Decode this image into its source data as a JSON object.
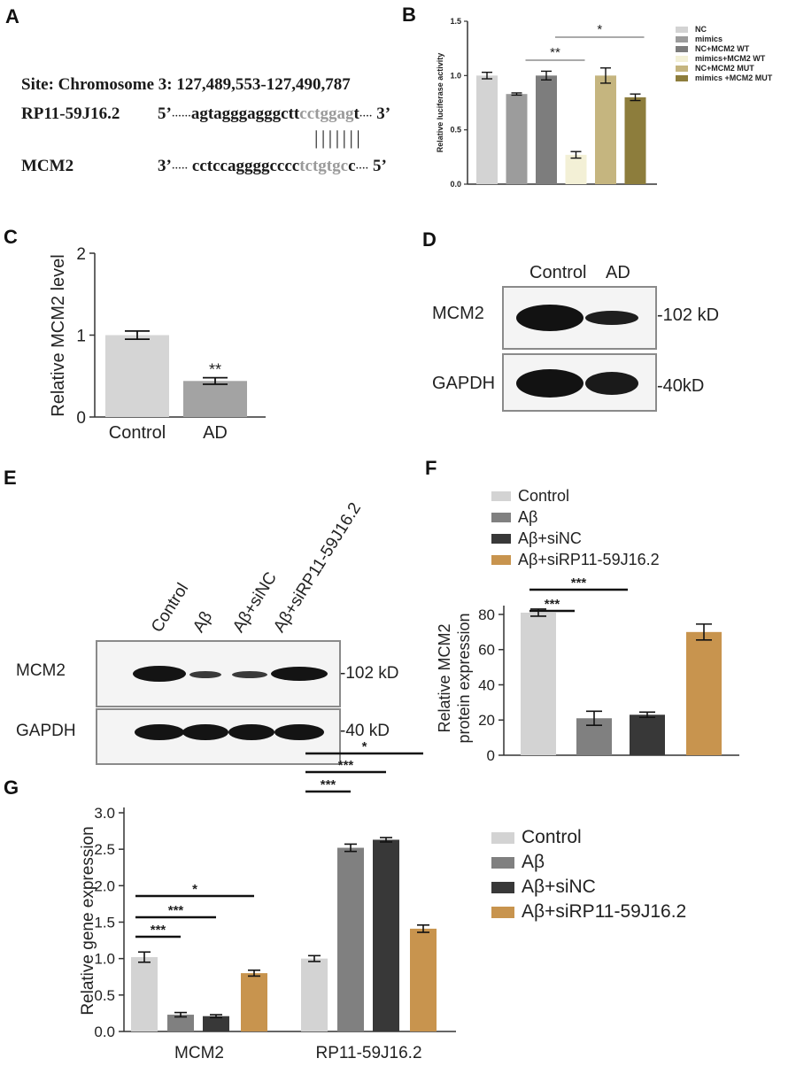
{
  "panel_letters": {
    "a": "A",
    "b": "B",
    "c": "C",
    "d": "D",
    "e": "E",
    "f": "F",
    "g": "G"
  },
  "panel_a": {
    "site": "Site: Chromosome 3: 127,489,553-127,490,787",
    "rna1_name": "RP11-59J16.2",
    "rna1_5": "5’",
    "rna1_dots": "······",
    "rna1_seq_main": "agtagggagggctt",
    "rna1_seq_seed": "cctggag",
    "rna1_seq_tail": "t",
    "rna1_tail_dots": "····",
    "rna1_3": "3’",
    "gene_name": "MCM2",
    "gene_3": "3’",
    "gene_dots": "·····",
    "gene_seq_main": "cctccaggggcccc",
    "gene_seq_seed": "tctgtgc",
    "gene_seq_tail": "c",
    "gene_tail_dots": "····",
    "gene_5": "5’",
    "pair_marks": "| | | | | | |"
  },
  "chart_data": [
    {
      "panel": "B",
      "type": "bar",
      "ylabel": "Relative luciferase activity",
      "ylim": [
        0,
        1.5
      ],
      "yticks": [
        "0.0",
        "0.5",
        "1.0",
        "1.5"
      ],
      "categories": [
        "NC",
        "mimics",
        "NC+MCM2 WT",
        "mimics+MCM2 WT",
        "NC+MCM2 MUT",
        "mimics +MCM2 MUT"
      ],
      "values": [
        1.0,
        0.83,
        1.0,
        0.27,
        1.0,
        0.8
      ],
      "errors": [
        0.03,
        0.01,
        0.04,
        0.03,
        0.07,
        0.03
      ],
      "colors": [
        "#d3d3d3",
        "#9c9c9c",
        "#7d7d7d",
        "#f3f0d6",
        "#c5b57f",
        "#8d7d3c"
      ],
      "significance": [
        {
          "label": "**",
          "from": 1,
          "to": 3
        },
        {
          "label": "*",
          "from": 2,
          "to": 5
        }
      ],
      "legend": "right"
    },
    {
      "panel": "C",
      "type": "bar",
      "ylabel": "Relative MCM2 level",
      "ylim": [
        0,
        2
      ],
      "yticks": [
        "0",
        "1",
        "2"
      ],
      "categories": [
        "Control",
        "AD"
      ],
      "values": [
        1.0,
        0.44
      ],
      "errors": [
        0.05,
        0.04
      ],
      "colors": [
        "#d5d5d5",
        "#a3a3a3"
      ],
      "annotations": [
        {
          "label": "**",
          "bar": 1
        }
      ]
    },
    {
      "panel": "F",
      "type": "bar",
      "ylabel": "Relative MCM2 protein expression",
      "ylim": [
        0,
        85
      ],
      "yticks": [
        "0",
        "20",
        "40",
        "60",
        "80"
      ],
      "series_names": [
        "Control",
        "Aβ",
        "Aβ+siNC",
        "Aβ+siRP11-59J16.2"
      ],
      "values": [
        81,
        21,
        23,
        70
      ],
      "errors": [
        2,
        4,
        1.5,
        4.5
      ],
      "colors": [
        "#d3d3d3",
        "#808080",
        "#383838",
        "#c8944e"
      ],
      "significance": [
        {
          "label": "***",
          "from": 0,
          "to": 1
        },
        {
          "label": "***",
          "from": 0,
          "to": 2
        }
      ],
      "legend": "top"
    },
    {
      "panel": "G",
      "type": "bar",
      "ylabel": "Relative gene expression",
      "ylim": [
        0,
        3.0
      ],
      "yticks": [
        "0.0",
        "0.5",
        "1.0",
        "1.5",
        "2.0",
        "2.5",
        "3.0"
      ],
      "categories": [
        "MCM2",
        "RP11-59J16.2"
      ],
      "series": [
        {
          "name": "Control",
          "values": [
            1.02,
            1.0
          ],
          "errors": [
            0.07,
            0.04
          ]
        },
        {
          "name": "Aβ",
          "values": [
            0.23,
            2.52
          ],
          "errors": [
            0.03,
            0.05
          ]
        },
        {
          "name": "Aβ+siNC",
          "values": [
            0.21,
            2.63
          ],
          "errors": [
            0.02,
            0.03
          ]
        },
        {
          "name": "Aβ+siRP11-59J16.2",
          "values": [
            0.8,
            1.41
          ],
          "errors": [
            0.04,
            0.05
          ]
        }
      ],
      "colors": [
        "#d3d3d3",
        "#808080",
        "#383838",
        "#c8944e"
      ],
      "significance": [
        {
          "label": "***",
          "group": 0,
          "from": 0,
          "to": 1
        },
        {
          "label": "***",
          "group": 0,
          "from": 0,
          "to": 2
        },
        {
          "label": "*",
          "group": 0,
          "from": 0,
          "to": 3
        },
        {
          "label": "***",
          "group": 1,
          "from": 0,
          "to": 1
        },
        {
          "label": "***",
          "group": 1,
          "from": 0,
          "to": 2
        },
        {
          "label": "*",
          "group": 1,
          "from": 0,
          "to": 3
        }
      ],
      "legend": "right"
    }
  ],
  "blot_d": {
    "lanes": [
      "Control",
      "AD"
    ],
    "rows": [
      "MCM2",
      "GAPDH"
    ],
    "sizes": [
      "102 kD",
      "40kD"
    ]
  },
  "blot_e": {
    "lanes": [
      "Control",
      "Aβ",
      "Aβ+siNC",
      "Aβ+siRP11-59J16.2"
    ],
    "rows": [
      "MCM2",
      "GAPDH"
    ],
    "sizes": [
      "102 kD",
      "40 kD"
    ]
  }
}
